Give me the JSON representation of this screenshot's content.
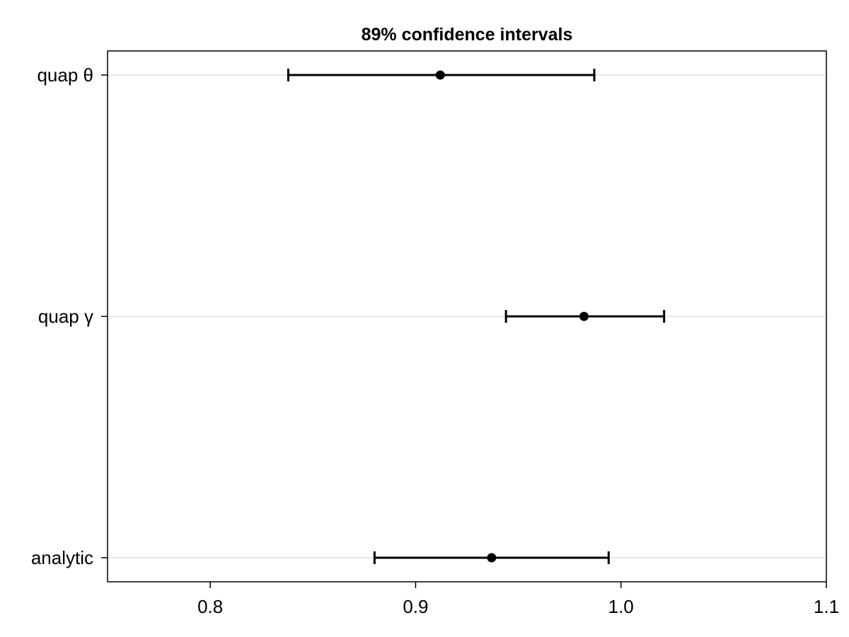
{
  "chart_data": {
    "type": "errorbar",
    "title": "89% confidence intervals",
    "xlabel": "",
    "ylabel": "",
    "xlim": [
      0.75,
      1.1
    ],
    "x_ticks": [
      0.8,
      0.9,
      1.0,
      1.1
    ],
    "x_tick_labels": [
      "0.8",
      "0.9",
      "1.0",
      "1.1"
    ],
    "grid": "horizontal",
    "categories": [
      "quap θ",
      "quap γ",
      "analytic"
    ],
    "estimates": [
      0.912,
      0.982,
      0.937
    ],
    "lower": [
      0.838,
      0.944,
      0.88
    ],
    "upper": [
      0.987,
      1.021,
      0.994
    ],
    "colors": {
      "marker": "#000000",
      "grid": "#e0e0e0",
      "axis": "#000000"
    }
  }
}
